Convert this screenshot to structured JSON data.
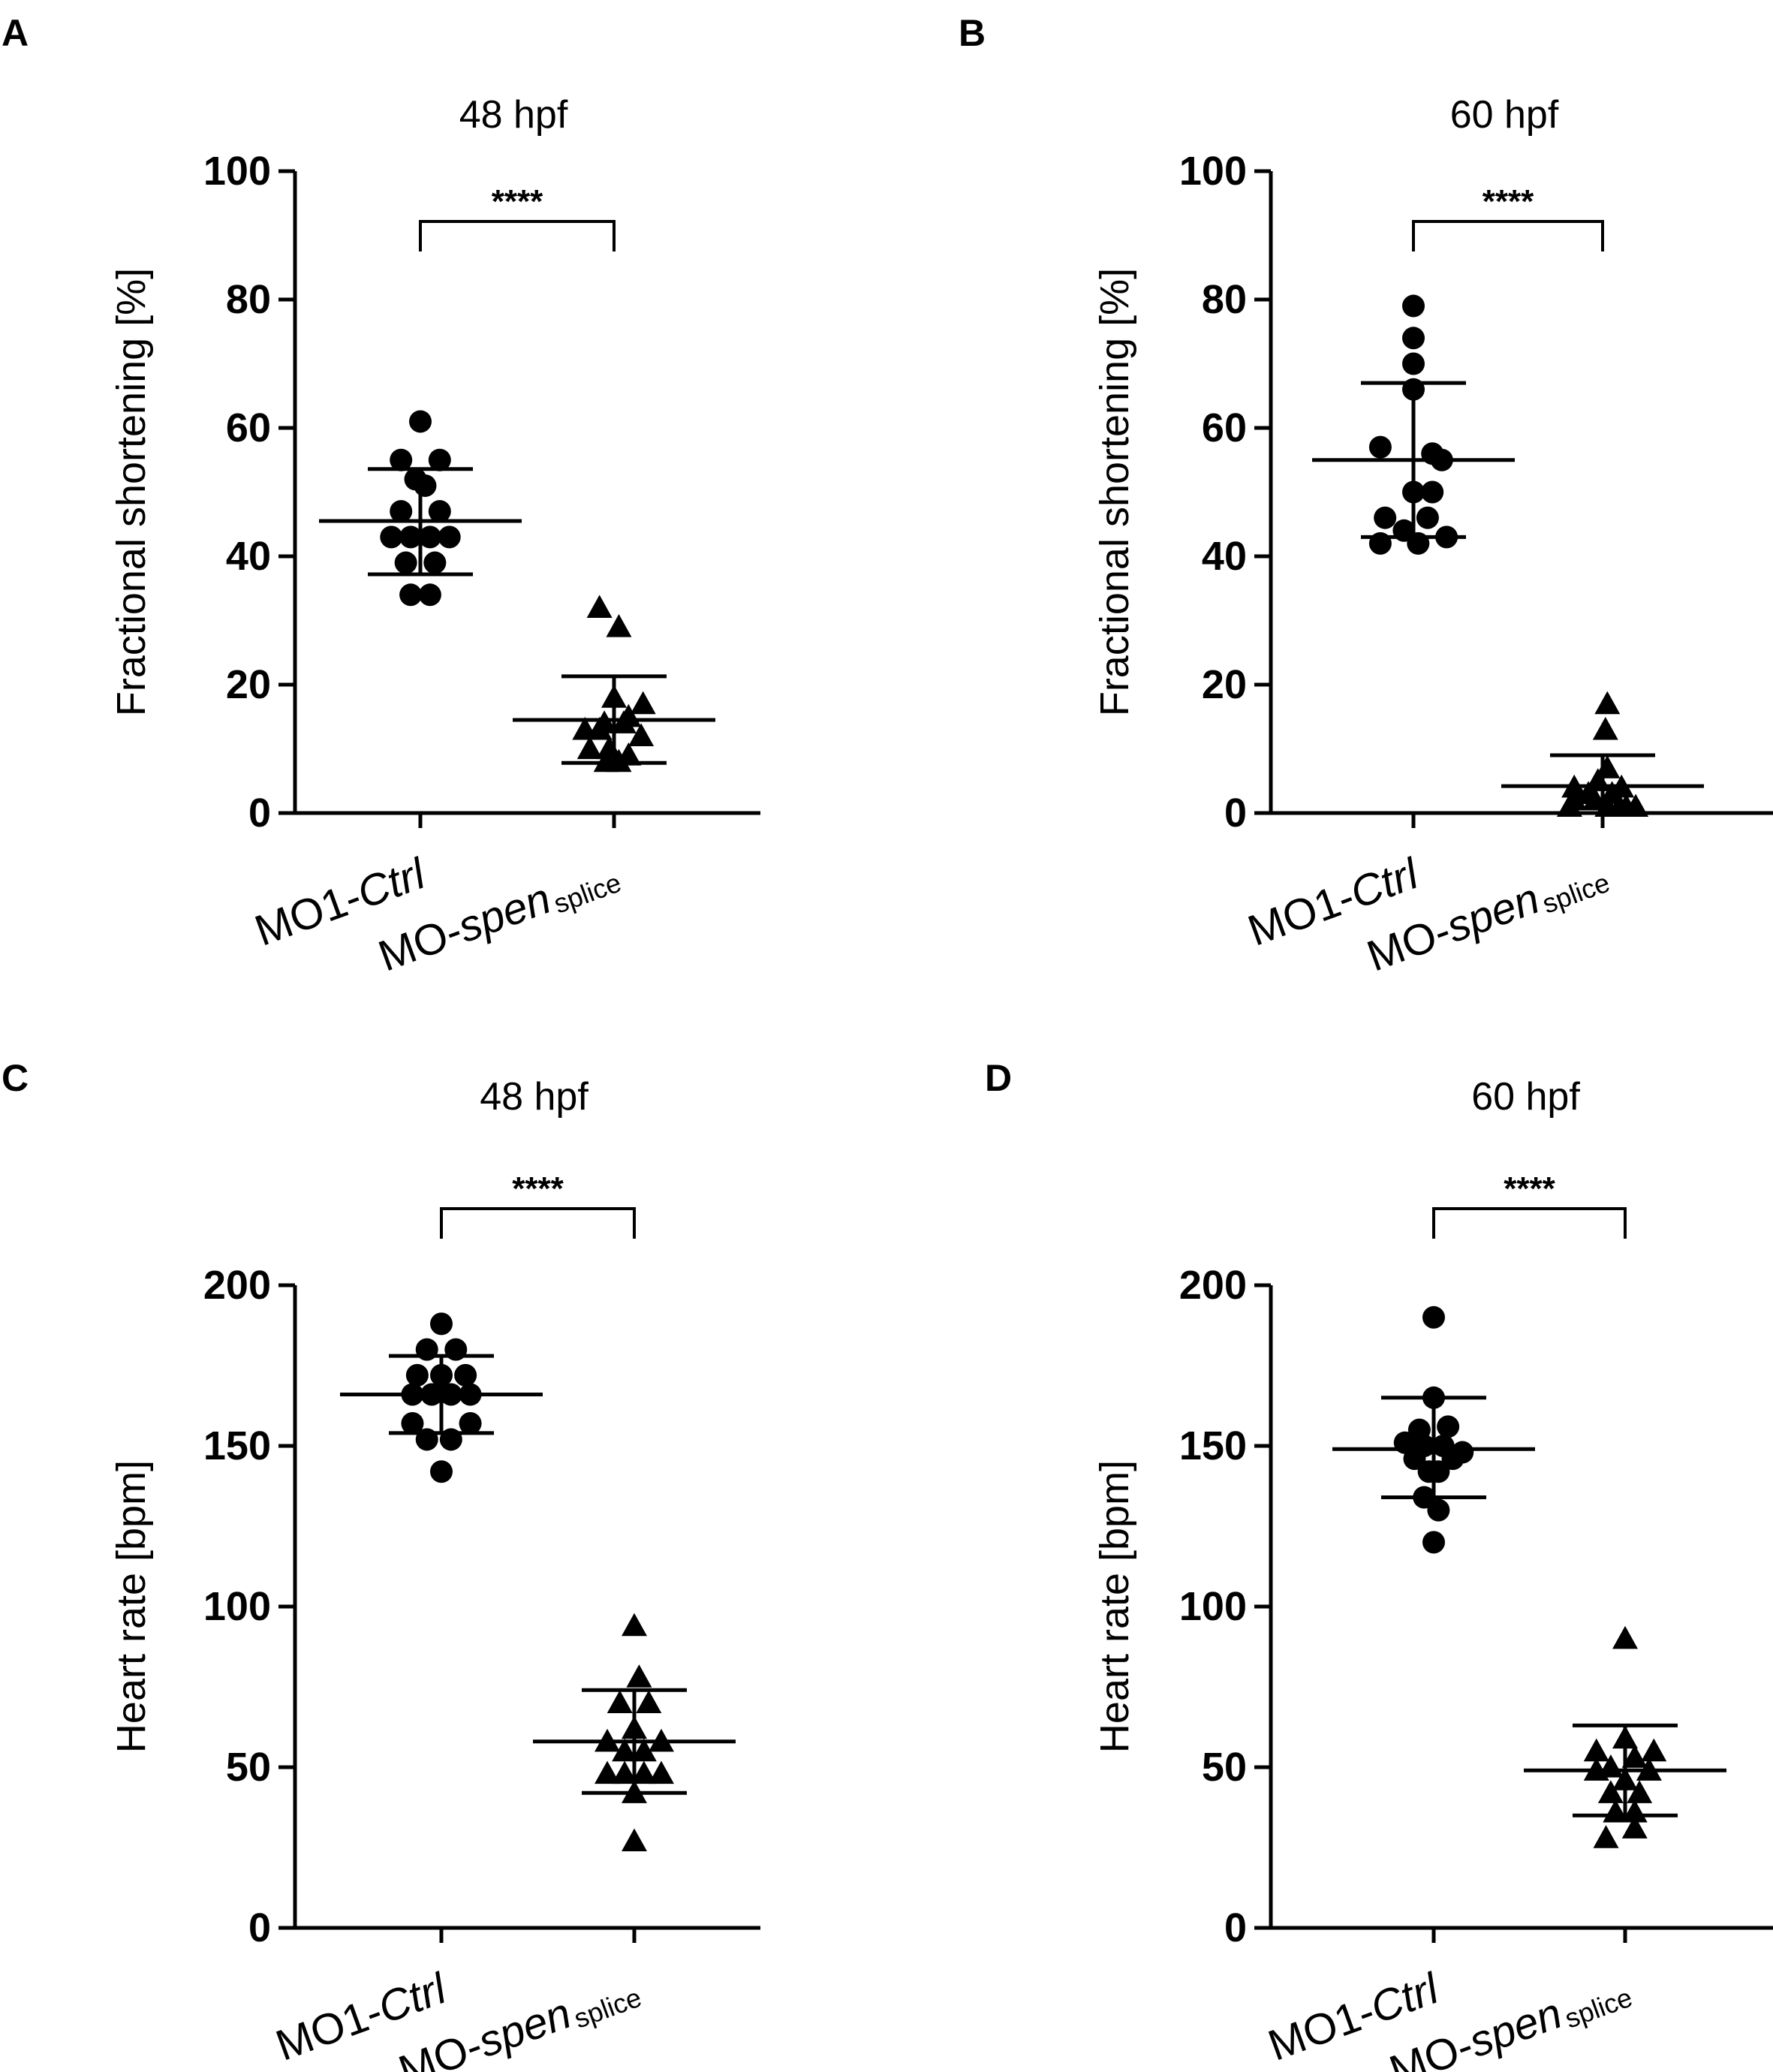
{
  "chart_data": [
    {
      "panel": "A",
      "type": "scatter",
      "title": "48 hpf",
      "ylabel": "Fractional shortening [%]",
      "ylim": [
        0,
        100
      ],
      "yticks": [
        0,
        20,
        40,
        60,
        80,
        100
      ],
      "categories": [
        {
          "prefix": "MO1-",
          "italic": "Ctrl",
          "sub": ""
        },
        {
          "prefix": "MO-",
          "italic": "spen",
          "sub": "splice"
        }
      ],
      "significance": "****",
      "groups": [
        {
          "marker": "circle",
          "mean": 45.5,
          "sd_low": 37.2,
          "sd_high": 53.6,
          "points": [
            [
              0,
              61
            ],
            [
              -0.2,
              55
            ],
            [
              0.2,
              55
            ],
            [
              -0.05,
              52
            ],
            [
              0.05,
              51
            ],
            [
              -0.2,
              47
            ],
            [
              0.2,
              47
            ],
            [
              -0.3,
              43
            ],
            [
              -0.1,
              43
            ],
            [
              0.1,
              43
            ],
            [
              0.3,
              43
            ],
            [
              -0.15,
              39
            ],
            [
              0.15,
              39
            ],
            [
              -0.1,
              34
            ],
            [
              0.1,
              34
            ]
          ]
        },
        {
          "marker": "triangle",
          "mean": 14.5,
          "sd_low": 7.8,
          "sd_high": 21.3,
          "points": [
            [
              -0.15,
              32
            ],
            [
              0.05,
              29
            ],
            [
              0,
              18
            ],
            [
              0.3,
              17
            ],
            [
              0.15,
              15
            ],
            [
              -0.1,
              14
            ],
            [
              0.1,
              14
            ],
            [
              -0.3,
              13
            ],
            [
              -0.15,
              13
            ],
            [
              0.28,
              12
            ],
            [
              -0.25,
              10
            ],
            [
              -0.05,
              10
            ],
            [
              0.15,
              9
            ],
            [
              0.05,
              8
            ],
            [
              -0.08,
              8
            ]
          ]
        }
      ]
    },
    {
      "panel": "B",
      "type": "scatter",
      "title": "60 hpf",
      "ylabel": "Fractional shortening [%]",
      "ylim": [
        0,
        100
      ],
      "yticks": [
        0,
        20,
        40,
        60,
        80,
        100
      ],
      "categories": [
        {
          "prefix": "MO1-",
          "italic": "Ctrl",
          "sub": ""
        },
        {
          "prefix": "MO-",
          "italic": "spen",
          "sub": "splice"
        }
      ],
      "significance": "****",
      "groups": [
        {
          "marker": "circle",
          "mean": 55,
          "sd_low": 43,
          "sd_high": 67,
          "points": [
            [
              0,
              79
            ],
            [
              0,
              74
            ],
            [
              0,
              70
            ],
            [
              0,
              66
            ],
            [
              -0.35,
              57
            ],
            [
              0.2,
              56
            ],
            [
              0.3,
              55
            ],
            [
              0,
              50
            ],
            [
              0.2,
              50
            ],
            [
              -0.3,
              46
            ],
            [
              0.15,
              46
            ],
            [
              -0.1,
              44
            ],
            [
              -0.35,
              42
            ],
            [
              0.05,
              42
            ],
            [
              0.35,
              43
            ]
          ]
        },
        {
          "marker": "triangle",
          "mean": 4.2,
          "sd_low": 0,
          "sd_high": 9,
          "points": [
            [
              0.05,
              17
            ],
            [
              0.03,
              13
            ],
            [
              0.05,
              7
            ],
            [
              -0.05,
              5
            ],
            [
              -0.3,
              4
            ],
            [
              0.2,
              4
            ],
            [
              -0.15,
              3
            ],
            [
              0.1,
              3
            ],
            [
              -0.3,
              2
            ],
            [
              -0.08,
              2
            ],
            [
              0.18,
              1
            ],
            [
              0.25,
              1
            ],
            [
              0.35,
              1
            ],
            [
              -0.35,
              1
            ],
            [
              0.05,
              1
            ]
          ]
        }
      ]
    },
    {
      "panel": "C",
      "type": "scatter",
      "title": "48 hpf",
      "ylabel": "Heart rate [bpm]",
      "ylim": [
        0,
        200
      ],
      "yticks": [
        0,
        50,
        100,
        150,
        200
      ],
      "categories": [
        {
          "prefix": "MO1-",
          "italic": "Ctrl",
          "sub": ""
        },
        {
          "prefix": "MO-",
          "italic": "spen",
          "sub": "splice"
        }
      ],
      "significance": "****",
      "groups": [
        {
          "marker": "circle",
          "mean": 166,
          "sd_low": 154,
          "sd_high": 178,
          "points": [
            [
              0,
              188
            ],
            [
              -0.15,
              180
            ],
            [
              0.15,
              180
            ],
            [
              -0.25,
              172
            ],
            [
              0,
              172
            ],
            [
              0.25,
              172
            ],
            [
              -0.3,
              166
            ],
            [
              -0.1,
              166
            ],
            [
              0.1,
              166
            ],
            [
              0.3,
              166
            ],
            [
              -0.3,
              157
            ],
            [
              0.3,
              157
            ],
            [
              -0.15,
              152
            ],
            [
              0.1,
              152
            ],
            [
              0,
              142
            ]
          ]
        },
        {
          "marker": "triangle",
          "mean": 58,
          "sd_low": 42,
          "sd_high": 74,
          "points": [
            [
              0,
              94
            ],
            [
              0.05,
              78
            ],
            [
              -0.15,
              70
            ],
            [
              0.15,
              70
            ],
            [
              0,
              62
            ],
            [
              -0.28,
              58
            ],
            [
              0.28,
              58
            ],
            [
              -0.1,
              55
            ],
            [
              0.1,
              55
            ],
            [
              -0.28,
              48
            ],
            [
              0.28,
              48
            ],
            [
              -0.1,
              48
            ],
            [
              0.1,
              48
            ],
            [
              0,
              42
            ],
            [
              0,
              27
            ]
          ]
        }
      ]
    },
    {
      "panel": "D",
      "type": "scatter",
      "title": "60 hpf",
      "ylabel": "Heart rate [bpm]",
      "ylim": [
        0,
        200
      ],
      "yticks": [
        0,
        50,
        100,
        150,
        200
      ],
      "categories": [
        {
          "prefix": "MO1-",
          "italic": "Ctrl",
          "sub": ""
        },
        {
          "prefix": "MO-",
          "italic": "spen",
          "sub": "splice"
        }
      ],
      "significance": "****",
      "groups": [
        {
          "marker": "circle",
          "mean": 149,
          "sd_low": 134,
          "sd_high": 165,
          "points": [
            [
              0,
              190
            ],
            [
              0,
              165
            ],
            [
              -0.15,
              155
            ],
            [
              0.15,
              156
            ],
            [
              -0.3,
              151
            ],
            [
              0.3,
              148
            ],
            [
              -0.1,
              150
            ],
            [
              0.1,
              150
            ],
            [
              -0.2,
              146
            ],
            [
              0.2,
              146
            ],
            [
              -0.05,
              142
            ],
            [
              0.05,
              142
            ],
            [
              -0.1,
              134
            ],
            [
              0.05,
              130
            ],
            [
              0,
              120
            ]
          ]
        },
        {
          "marker": "triangle",
          "mean": 49,
          "sd_low": 35,
          "sd_high": 63,
          "points": [
            [
              0,
              90
            ],
            [
              0,
              59
            ],
            [
              0.3,
              55
            ],
            [
              -0.3,
              55
            ],
            [
              0.1,
              53
            ],
            [
              -0.15,
              50
            ],
            [
              -0.3,
              49
            ],
            [
              0.25,
              49
            ],
            [
              0,
              46
            ],
            [
              -0.15,
              42
            ],
            [
              0.15,
              42
            ],
            [
              -0.1,
              36
            ],
            [
              0.1,
              36
            ],
            [
              0.1,
              31
            ],
            [
              -0.2,
              28
            ]
          ]
        }
      ]
    }
  ]
}
